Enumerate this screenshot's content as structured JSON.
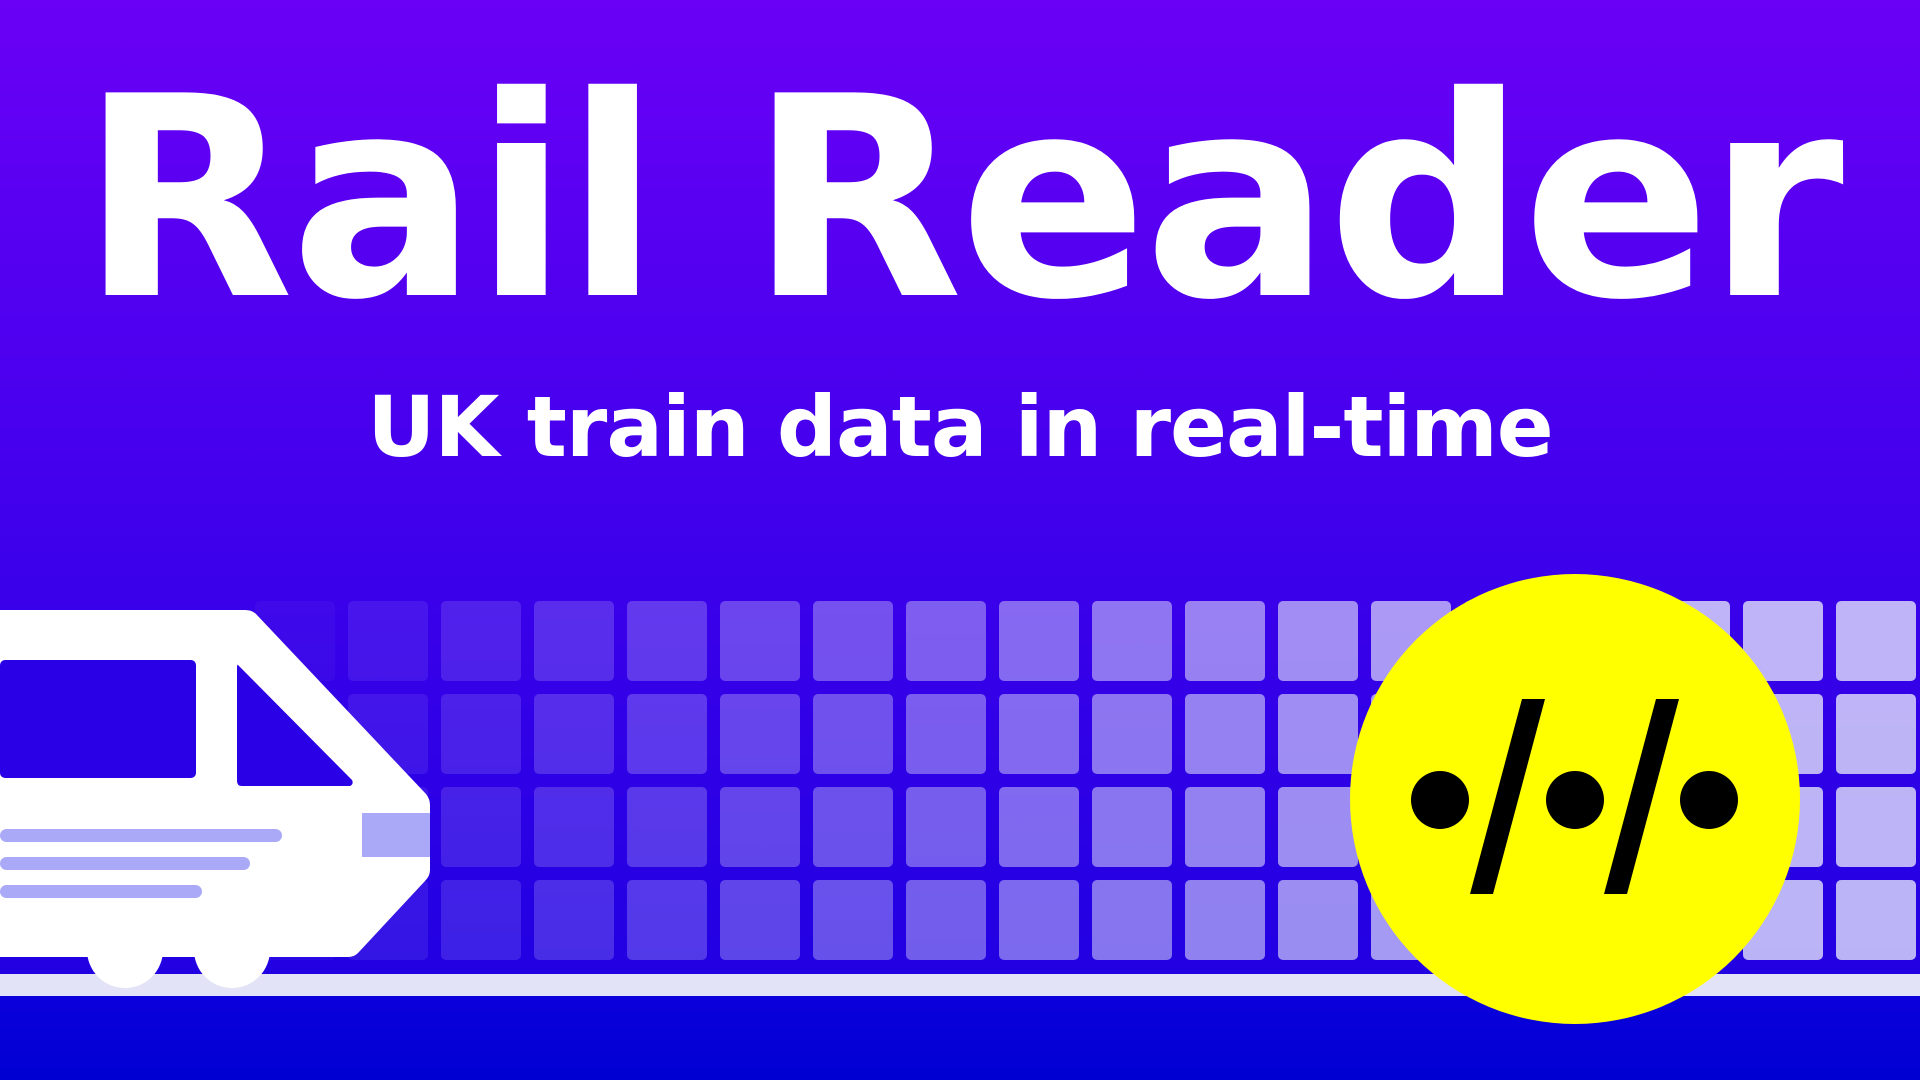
{
  "hero": {
    "title": "Rail Reader",
    "subtitle": "UK train data in real-time"
  },
  "colors": {
    "background_top": "#6a00f6",
    "background_bottom": "#1a00e0",
    "text": "#ffffff",
    "badge": "#ffff00",
    "badge_glyph": "#000000",
    "train_body": "#ffffff",
    "train_window": "#2a00e6",
    "train_stripes": "#a9a9f8",
    "rail": "#e3e3f7",
    "ground": "#0000d2"
  },
  "icons": {
    "train": "train-icon",
    "logo": "code-dots-logo-icon"
  }
}
